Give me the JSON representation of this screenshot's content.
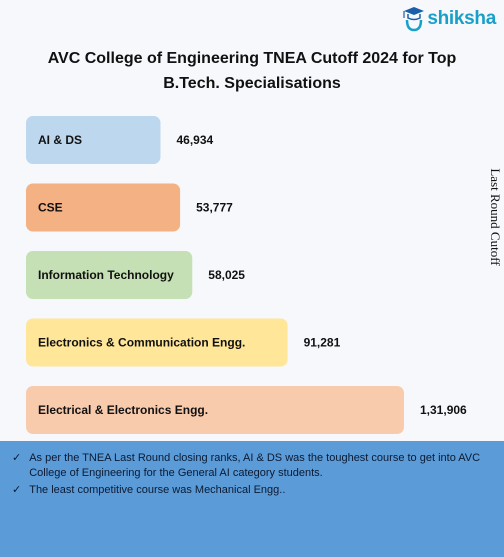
{
  "logo": {
    "text": "shiksha",
    "icon": "graduate-cap-icon"
  },
  "chart_data": {
    "type": "bar",
    "orientation": "horizontal",
    "title": "AVC College of Engineering TNEA Cutoff 2024 for Top B.Tech. Specialisations",
    "ylabel": "Last Round Cutoff",
    "categories": [
      "AI & DS",
      "CSE",
      "Information Technology",
      "Electronics & Communication Engg.",
      "Electrical & Electronics Engg."
    ],
    "values": [
      46934,
      53777,
      58025,
      91281,
      131906
    ],
    "value_labels": [
      "46,934",
      "53,777",
      "58,025",
      "91,281",
      "1,31,906"
    ],
    "colors": [
      "#bdd7ee",
      "#f4b183",
      "#c5e0b4",
      "#ffe699",
      "#f8cbad"
    ],
    "grid": false,
    "legend": "none"
  },
  "notes": [
    "As per the TNEA Last Round closing ranks, AI & DS was the toughest course to get into AVC College of Engineering for the General AI category students.",
    "The least competitive course was Mechanical Engg.."
  ],
  "note_icon": "checkmark-icon"
}
